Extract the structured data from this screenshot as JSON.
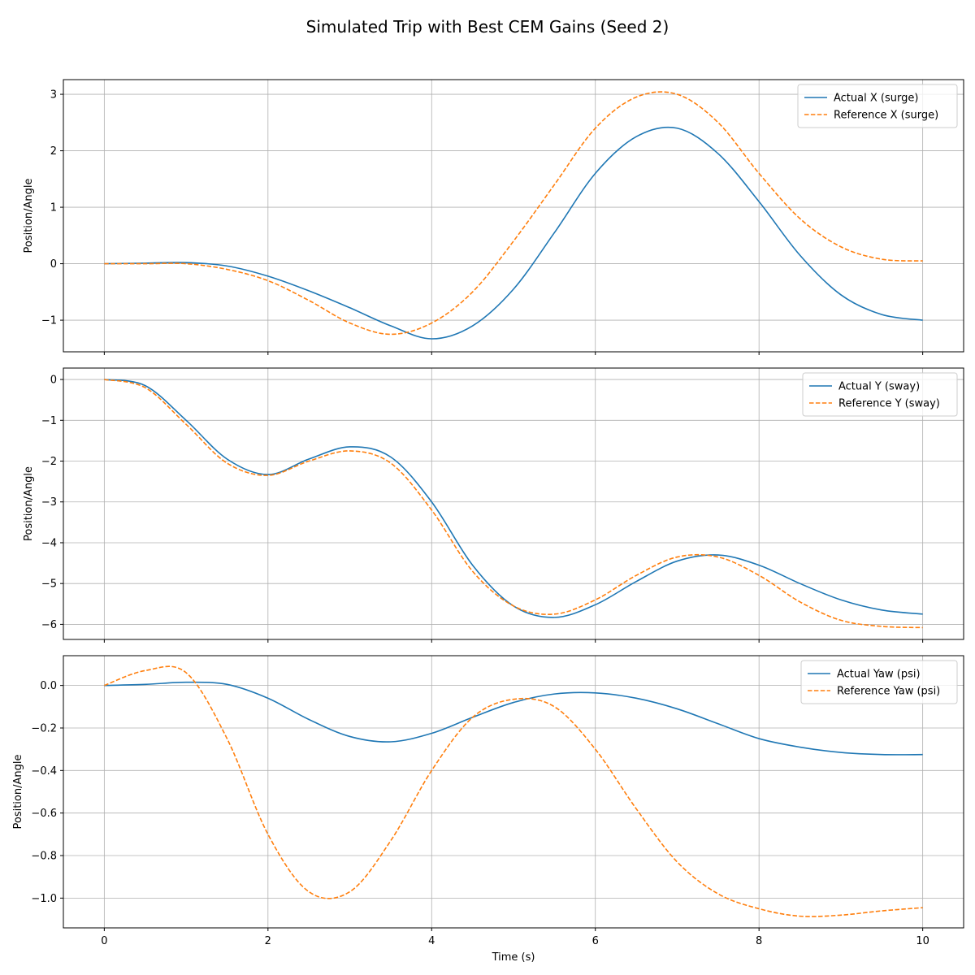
{
  "figure": {
    "title": "Simulated Trip with Best CEM Gains (Seed 2)"
  },
  "colors": {
    "actual": "#1f77b4",
    "reference": "#ff7f0e",
    "grid": "#b0b0b0"
  },
  "chart_data": [
    {
      "type": "line",
      "ylabel": "Position/Angle",
      "xlabel": "",
      "xlim": [
        -0.5,
        10.5
      ],
      "ylim": [
        -1.56,
        3.26
      ],
      "xticks": [
        0,
        2,
        4,
        6,
        8,
        10
      ],
      "yticks": [
        -1,
        0,
        1,
        2,
        3
      ],
      "ytick_labels": [
        "−1",
        "0",
        "1",
        "2",
        "3"
      ],
      "grid": true,
      "legend_position": "top-right",
      "x": [
        0,
        0.5,
        1,
        1.5,
        2,
        2.5,
        3,
        3.5,
        4,
        4.5,
        5,
        5.5,
        6,
        6.5,
        7,
        7.5,
        8,
        8.5,
        9,
        9.5,
        10
      ],
      "series": [
        {
          "name": "Actual X (surge)",
          "style": "solid",
          "values": [
            0,
            0.01,
            0.02,
            -0.04,
            -0.22,
            -0.48,
            -0.78,
            -1.1,
            -1.33,
            -1.1,
            -0.45,
            0.55,
            1.6,
            2.25,
            2.4,
            1.95,
            1.1,
            0.15,
            -0.55,
            -0.9,
            -1.0
          ]
        },
        {
          "name": "Reference X (surge)",
          "style": "dashed",
          "values": [
            0,
            0.0,
            0.0,
            -0.1,
            -0.3,
            -0.65,
            -1.05,
            -1.25,
            -1.05,
            -0.5,
            0.4,
            1.4,
            2.4,
            2.95,
            3.0,
            2.5,
            1.6,
            0.8,
            0.3,
            0.08,
            0.05
          ]
        }
      ]
    },
    {
      "type": "line",
      "ylabel": "Position/Angle",
      "xlabel": "",
      "xlim": [
        -0.5,
        10.5
      ],
      "ylim": [
        -6.37,
        0.28
      ],
      "xticks": [
        0,
        2,
        4,
        6,
        8,
        10
      ],
      "yticks": [
        -6,
        -5,
        -4,
        -3,
        -2,
        -1,
        0
      ],
      "ytick_labels": [
        "−6",
        "−5",
        "−4",
        "−3",
        "−2",
        "−1",
        "0"
      ],
      "grid": true,
      "legend_position": "top-right",
      "x": [
        0,
        0.5,
        1,
        1.5,
        2,
        2.5,
        3,
        3.5,
        4,
        4.5,
        5,
        5.5,
        6,
        6.5,
        7,
        7.5,
        8,
        8.5,
        9,
        9.5,
        10
      ],
      "series": [
        {
          "name": "Actual Y (sway)",
          "style": "solid",
          "values": [
            0,
            -0.15,
            -1.0,
            -1.95,
            -2.33,
            -1.95,
            -1.65,
            -1.9,
            -3.0,
            -4.55,
            -5.55,
            -5.83,
            -5.52,
            -4.95,
            -4.45,
            -4.3,
            -4.55,
            -5.0,
            -5.4,
            -5.65,
            -5.75
          ]
        },
        {
          "name": "Reference Y (sway)",
          "style": "dashed",
          "values": [
            0,
            -0.2,
            -1.1,
            -2.05,
            -2.35,
            -2.0,
            -1.75,
            -2.05,
            -3.2,
            -4.7,
            -5.55,
            -5.75,
            -5.4,
            -4.8,
            -4.35,
            -4.35,
            -4.8,
            -5.45,
            -5.9,
            -6.05,
            -6.08
          ]
        }
      ]
    },
    {
      "type": "line",
      "ylabel": "Position/Angle",
      "xlabel": "Time (s)",
      "xlim": [
        -0.5,
        10.5
      ],
      "ylim": [
        -1.14,
        0.14
      ],
      "xticks": [
        0,
        2,
        4,
        6,
        8,
        10
      ],
      "xtick_labels": [
        "0",
        "2",
        "4",
        "6",
        "8",
        "10"
      ],
      "yticks": [
        -1.0,
        -0.8,
        -0.6,
        -0.4,
        -0.2,
        0.0
      ],
      "ytick_labels": [
        "−1.0",
        "−0.8",
        "−0.6",
        "−0.4",
        "−0.2",
        "0.0"
      ],
      "grid": true,
      "legend_position": "top-right",
      "x": [
        0,
        0.5,
        1,
        1.5,
        2,
        2.5,
        3,
        3.5,
        4,
        4.5,
        5,
        5.5,
        6,
        6.5,
        7,
        7.5,
        8,
        8.5,
        9,
        9.5,
        10
      ],
      "series": [
        {
          "name": "Actual Yaw (psi)",
          "style": "solid",
          "values": [
            0,
            0.005,
            0.015,
            0.005,
            -0.06,
            -0.16,
            -0.24,
            -0.265,
            -0.225,
            -0.15,
            -0.08,
            -0.04,
            -0.035,
            -0.06,
            -0.11,
            -0.18,
            -0.25,
            -0.29,
            -0.315,
            -0.325,
            -0.325
          ]
        },
        {
          "name": "Reference Yaw (psi)",
          "style": "dashed",
          "values": [
            0,
            0.07,
            0.06,
            -0.25,
            -0.7,
            -0.97,
            -0.97,
            -0.73,
            -0.4,
            -0.15,
            -0.065,
            -0.1,
            -0.3,
            -0.58,
            -0.83,
            -0.98,
            -1.05,
            -1.085,
            -1.08,
            -1.06,
            -1.045
          ]
        }
      ]
    }
  ]
}
